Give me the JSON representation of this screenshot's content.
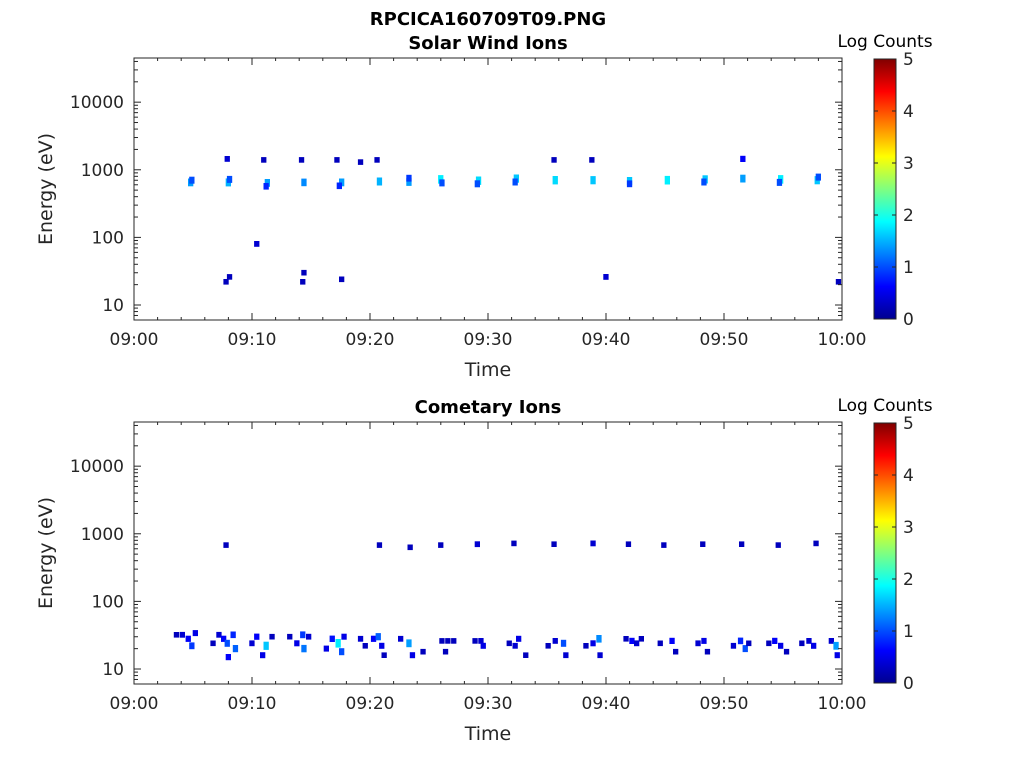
{
  "figure_title": "RPCICA160709T09.PNG",
  "chart_data": [
    {
      "type": "heatmap",
      "title": "Solar Wind Ions",
      "xlabel": "Time",
      "ylabel": "Energy (eV)",
      "x_ticks": [
        "09:00",
        "09:10",
        "09:20",
        "09:30",
        "09:40",
        "09:50",
        "10:00"
      ],
      "xlim_minutes": [
        0,
        60
      ],
      "y_scale": "log",
      "y_ticks": [
        10,
        100,
        1000,
        10000
      ],
      "y_tick_labels": [
        "10",
        "100",
        "1000",
        "10000"
      ],
      "ylim": [
        6,
        45000
      ],
      "colorbar": {
        "label": "Log Counts",
        "min": 0,
        "max": 5,
        "ticks": [
          "0",
          "1",
          "2",
          "3",
          "4",
          "5"
        ],
        "colormap": "jet"
      },
      "cells": [
        {
          "t": 4.8,
          "e": 650,
          "v": 1.4
        },
        {
          "t": 4.9,
          "e": 700,
          "v": 1.0
        },
        {
          "t": 8.0,
          "e": 650,
          "v": 1.5
        },
        {
          "t": 8.1,
          "e": 720,
          "v": 1.0
        },
        {
          "t": 7.9,
          "e": 1450,
          "v": 0.4
        },
        {
          "t": 11.3,
          "e": 640,
          "v": 1.4
        },
        {
          "t": 11.2,
          "e": 570,
          "v": 0.8
        },
        {
          "t": 11.0,
          "e": 1400,
          "v": 0.3
        },
        {
          "t": 14.4,
          "e": 650,
          "v": 1.3
        },
        {
          "t": 14.2,
          "e": 1400,
          "v": 0.3
        },
        {
          "t": 17.6,
          "e": 650,
          "v": 1.4
        },
        {
          "t": 17.4,
          "e": 580,
          "v": 0.8
        },
        {
          "t": 17.2,
          "e": 1400,
          "v": 0.3
        },
        {
          "t": 19.2,
          "e": 1300,
          "v": 0.3
        },
        {
          "t": 20.8,
          "e": 670,
          "v": 1.5
        },
        {
          "t": 20.6,
          "e": 1400,
          "v": 0.3
        },
        {
          "t": 23.3,
          "e": 660,
          "v": 1.4
        },
        {
          "t": 23.3,
          "e": 750,
          "v": 0.9
        },
        {
          "t": 26.0,
          "e": 720,
          "v": 1.8
        },
        {
          "t": 26.1,
          "e": 640,
          "v": 1.0
        },
        {
          "t": 29.2,
          "e": 690,
          "v": 1.7
        },
        {
          "t": 29.1,
          "e": 620,
          "v": 1.0
        },
        {
          "t": 32.4,
          "e": 740,
          "v": 1.6
        },
        {
          "t": 32.3,
          "e": 660,
          "v": 1.0
        },
        {
          "t": 35.7,
          "e": 700,
          "v": 1.7
        },
        {
          "t": 35.6,
          "e": 1400,
          "v": 0.3
        },
        {
          "t": 38.9,
          "e": 700,
          "v": 1.6
        },
        {
          "t": 38.8,
          "e": 1400,
          "v": 0.3
        },
        {
          "t": 42.0,
          "e": 680,
          "v": 1.6
        },
        {
          "t": 42.0,
          "e": 620,
          "v": 0.9
        },
        {
          "t": 45.2,
          "e": 700,
          "v": 1.8
        },
        {
          "t": 48.4,
          "e": 720,
          "v": 1.6
        },
        {
          "t": 48.3,
          "e": 660,
          "v": 1.0
        },
        {
          "t": 51.6,
          "e": 740,
          "v": 1.4
        },
        {
          "t": 51.6,
          "e": 1450,
          "v": 0.6
        },
        {
          "t": 54.8,
          "e": 720,
          "v": 1.8
        },
        {
          "t": 54.7,
          "e": 650,
          "v": 1.0
        },
        {
          "t": 57.9,
          "e": 700,
          "v": 1.6
        },
        {
          "t": 58.0,
          "e": 780,
          "v": 1.0
        },
        {
          "t": 10.4,
          "e": 80,
          "v": 0.4
        },
        {
          "t": 7.8,
          "e": 22,
          "v": 0.3
        },
        {
          "t": 8.1,
          "e": 26,
          "v": 0.3
        },
        {
          "t": 14.4,
          "e": 30,
          "v": 0.3
        },
        {
          "t": 14.3,
          "e": 22,
          "v": 0.3
        },
        {
          "t": 17.6,
          "e": 24,
          "v": 0.3
        },
        {
          "t": 40.0,
          "e": 26,
          "v": 0.4
        },
        {
          "t": 59.7,
          "e": 22,
          "v": 0.3
        }
      ]
    },
    {
      "type": "heatmap",
      "title": "Cometary Ions",
      "xlabel": "Time",
      "ylabel": "Energy (eV)",
      "x_ticks": [
        "09:00",
        "09:10",
        "09:20",
        "09:30",
        "09:40",
        "09:50",
        "10:00"
      ],
      "xlim_minutes": [
        0,
        60
      ],
      "y_scale": "log",
      "y_ticks": [
        10,
        100,
        1000,
        10000
      ],
      "y_tick_labels": [
        "10",
        "100",
        "1000",
        "10000"
      ],
      "ylim": [
        6,
        45000
      ],
      "colorbar": {
        "label": "Log Counts",
        "min": 0,
        "max": 5,
        "ticks": [
          "0",
          "1",
          "2",
          "3",
          "4",
          "5"
        ],
        "colormap": "jet"
      },
      "cells": [
        {
          "t": 3.6,
          "e": 32,
          "v": 0.3
        },
        {
          "t": 4.1,
          "e": 32,
          "v": 0.4
        },
        {
          "t": 4.6,
          "e": 28,
          "v": 0.6
        },
        {
          "t": 4.9,
          "e": 22,
          "v": 0.9
        },
        {
          "t": 5.2,
          "e": 34,
          "v": 0.5
        },
        {
          "t": 6.7,
          "e": 24,
          "v": 0.3
        },
        {
          "t": 7.2,
          "e": 32,
          "v": 0.4
        },
        {
          "t": 7.6,
          "e": 28,
          "v": 0.6
        },
        {
          "t": 7.9,
          "e": 24,
          "v": 1.0
        },
        {
          "t": 8.0,
          "e": 15,
          "v": 0.6
        },
        {
          "t": 8.4,
          "e": 32,
          "v": 0.8
        },
        {
          "t": 8.6,
          "e": 20,
          "v": 1.1
        },
        {
          "t": 10.0,
          "e": 24,
          "v": 0.4
        },
        {
          "t": 10.4,
          "e": 30,
          "v": 0.6
        },
        {
          "t": 10.9,
          "e": 16,
          "v": 0.5
        },
        {
          "t": 11.2,
          "e": 22,
          "v": 1.6
        },
        {
          "t": 11.7,
          "e": 30,
          "v": 0.3
        },
        {
          "t": 13.2,
          "e": 30,
          "v": 0.3
        },
        {
          "t": 13.8,
          "e": 24,
          "v": 0.5
        },
        {
          "t": 14.3,
          "e": 32,
          "v": 0.9
        },
        {
          "t": 14.4,
          "e": 20,
          "v": 1.2
        },
        {
          "t": 14.8,
          "e": 30,
          "v": 0.4
        },
        {
          "t": 16.3,
          "e": 20,
          "v": 0.5
        },
        {
          "t": 16.8,
          "e": 28,
          "v": 0.7
        },
        {
          "t": 17.3,
          "e": 24,
          "v": 1.8
        },
        {
          "t": 17.6,
          "e": 18,
          "v": 1.0
        },
        {
          "t": 17.8,
          "e": 30,
          "v": 0.5
        },
        {
          "t": 19.2,
          "e": 28,
          "v": 0.4
        },
        {
          "t": 19.6,
          "e": 22,
          "v": 0.3
        },
        {
          "t": 20.3,
          "e": 28,
          "v": 0.6
        },
        {
          "t": 20.7,
          "e": 30,
          "v": 1.1
        },
        {
          "t": 21.0,
          "e": 22,
          "v": 0.5
        },
        {
          "t": 21.2,
          "e": 16,
          "v": 0.3
        },
        {
          "t": 22.6,
          "e": 28,
          "v": 0.4
        },
        {
          "t": 23.3,
          "e": 24,
          "v": 1.4
        },
        {
          "t": 23.6,
          "e": 16,
          "v": 0.5
        },
        {
          "t": 24.5,
          "e": 18,
          "v": 0.3
        },
        {
          "t": 26.1,
          "e": 26,
          "v": 0.3
        },
        {
          "t": 26.6,
          "e": 26,
          "v": 0.3
        },
        {
          "t": 27.1,
          "e": 26,
          "v": 0.3
        },
        {
          "t": 26.4,
          "e": 18,
          "v": 0.3
        },
        {
          "t": 28.9,
          "e": 26,
          "v": 0.3
        },
        {
          "t": 29.4,
          "e": 26,
          "v": 0.4
        },
        {
          "t": 29.6,
          "e": 22,
          "v": 0.5
        },
        {
          "t": 31.8,
          "e": 24,
          "v": 0.3
        },
        {
          "t": 32.3,
          "e": 22,
          "v": 0.4
        },
        {
          "t": 32.6,
          "e": 28,
          "v": 0.5
        },
        {
          "t": 33.2,
          "e": 16,
          "v": 0.3
        },
        {
          "t": 35.1,
          "e": 22,
          "v": 0.3
        },
        {
          "t": 35.7,
          "e": 26,
          "v": 0.4
        },
        {
          "t": 36.4,
          "e": 24,
          "v": 1.0
        },
        {
          "t": 36.6,
          "e": 16,
          "v": 0.4
        },
        {
          "t": 38.3,
          "e": 22,
          "v": 0.3
        },
        {
          "t": 38.9,
          "e": 24,
          "v": 0.5
        },
        {
          "t": 39.4,
          "e": 28,
          "v": 1.3
        },
        {
          "t": 39.5,
          "e": 16,
          "v": 0.4
        },
        {
          "t": 41.7,
          "e": 28,
          "v": 0.3
        },
        {
          "t": 42.2,
          "e": 26,
          "v": 0.6
        },
        {
          "t": 42.6,
          "e": 24,
          "v": 0.4
        },
        {
          "t": 43.0,
          "e": 28,
          "v": 0.3
        },
        {
          "t": 44.6,
          "e": 24,
          "v": 0.3
        },
        {
          "t": 45.6,
          "e": 26,
          "v": 0.6
        },
        {
          "t": 45.9,
          "e": 18,
          "v": 0.3
        },
        {
          "t": 47.8,
          "e": 24,
          "v": 0.4
        },
        {
          "t": 48.3,
          "e": 26,
          "v": 0.5
        },
        {
          "t": 48.6,
          "e": 18,
          "v": 0.3
        },
        {
          "t": 50.8,
          "e": 22,
          "v": 0.4
        },
        {
          "t": 51.4,
          "e": 26,
          "v": 0.8
        },
        {
          "t": 51.8,
          "e": 20,
          "v": 1.0
        },
        {
          "t": 52.1,
          "e": 24,
          "v": 0.3
        },
        {
          "t": 53.8,
          "e": 24,
          "v": 0.3
        },
        {
          "t": 54.3,
          "e": 26,
          "v": 0.6
        },
        {
          "t": 54.8,
          "e": 22,
          "v": 0.5
        },
        {
          "t": 55.3,
          "e": 18,
          "v": 0.3
        },
        {
          "t": 56.6,
          "e": 24,
          "v": 0.3
        },
        {
          "t": 57.2,
          "e": 26,
          "v": 0.4
        },
        {
          "t": 57.6,
          "e": 22,
          "v": 0.5
        },
        {
          "t": 59.1,
          "e": 26,
          "v": 0.4
        },
        {
          "t": 59.5,
          "e": 22,
          "v": 1.4
        },
        {
          "t": 59.6,
          "e": 16,
          "v": 0.5
        },
        {
          "t": 7.8,
          "e": 680,
          "v": 0.3
        },
        {
          "t": 20.8,
          "e": 680,
          "v": 0.3
        },
        {
          "t": 23.4,
          "e": 630,
          "v": 0.3
        },
        {
          "t": 26.0,
          "e": 680,
          "v": 0.3
        },
        {
          "t": 29.1,
          "e": 700,
          "v": 0.4
        },
        {
          "t": 32.2,
          "e": 720,
          "v": 0.3
        },
        {
          "t": 35.6,
          "e": 700,
          "v": 0.3
        },
        {
          "t": 38.9,
          "e": 720,
          "v": 0.4
        },
        {
          "t": 41.9,
          "e": 700,
          "v": 0.3
        },
        {
          "t": 44.9,
          "e": 680,
          "v": 0.3
        },
        {
          "t": 48.2,
          "e": 700,
          "v": 0.3
        },
        {
          "t": 51.5,
          "e": 700,
          "v": 0.3
        },
        {
          "t": 54.6,
          "e": 680,
          "v": 0.3
        },
        {
          "t": 57.8,
          "e": 720,
          "v": 0.3
        }
      ]
    }
  ]
}
